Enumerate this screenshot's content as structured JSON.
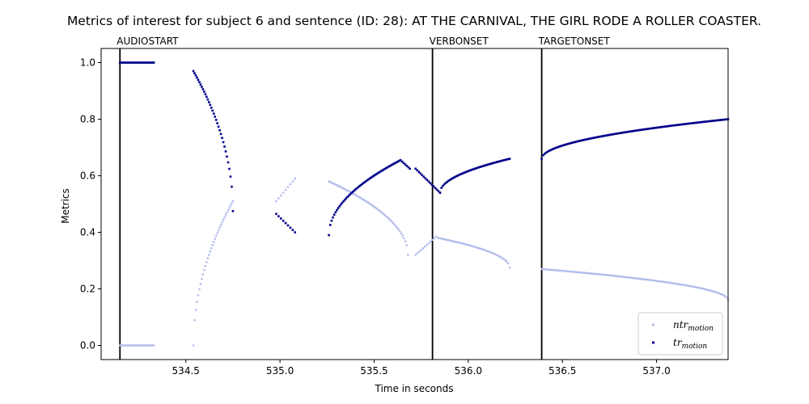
{
  "chart_data": {
    "type": "scatter",
    "title": "Metrics of interest for subject 6 and sentence (ID: 28): AT THE CARNIVAL, THE GIRL RODE A ROLLER COASTER.",
    "xlabel": "Time in seconds",
    "ylabel": "Metrics",
    "xlim": [
      534.05,
      537.38
    ],
    "ylim": [
      -0.05,
      1.05
    ],
    "x_ticks": [
      534.5,
      535.0,
      535.5,
      536.0,
      536.5,
      537.0
    ],
    "x_tick_labels": [
      "534.5",
      "535.0",
      "535.5",
      "536.0",
      "536.5",
      "537.0"
    ],
    "y_ticks": [
      0.0,
      0.2,
      0.4,
      0.6,
      0.8,
      1.0
    ],
    "y_tick_labels": [
      "0.0",
      "0.2",
      "0.4",
      "0.6",
      "0.8",
      "1.0"
    ],
    "events": [
      {
        "label": "AUDIOSTART",
        "x": 534.15
      },
      {
        "label": "VERBONSET",
        "x": 535.81
      },
      {
        "label": "TARGETONSET",
        "x": 536.39
      }
    ],
    "legend": {
      "position": "bottom-right",
      "entries": [
        {
          "base": "ntr",
          "sub": "motion",
          "series": 0
        },
        {
          "base": "tr",
          "sub": "motion",
          "series": 1
        }
      ]
    },
    "colors": {
      "ntr_motion": "#b3bdec",
      "tr_motion": "#00008b",
      "event_line": "#000000"
    },
    "series": [
      {
        "name": "ntr_motion",
        "segments": [
          {
            "x_start": 534.15,
            "x_end": 534.33,
            "n": 26,
            "y_start": 0.0,
            "y_end": 0.0,
            "curve": "linear"
          },
          {
            "x_start": 534.54,
            "x_end": 534.75,
            "n": 34,
            "y_start": 0.0,
            "y_end": 0.51,
            "curve": "concave"
          },
          {
            "x_start": 534.98,
            "x_end": 535.08,
            "n": 9,
            "y_start": 0.51,
            "y_end": 0.59,
            "curve": "linear"
          },
          {
            "x_start": 535.26,
            "x_end": 535.68,
            "n": 60,
            "y_start": 0.58,
            "y_end": 0.32,
            "curve": "convex"
          },
          {
            "x_start": 535.72,
            "x_end": 535.83,
            "n": 12,
            "y_start": 0.32,
            "y_end": 0.385,
            "curve": "linear"
          },
          {
            "x_start": 535.84,
            "x_end": 536.22,
            "n": 50,
            "y_start": 0.38,
            "y_end": 0.275,
            "curve": "convex"
          },
          {
            "x_start": 536.39,
            "x_end": 537.38,
            "n": 130,
            "y_start": 0.27,
            "y_end": 0.16,
            "curve": "convex"
          }
        ]
      },
      {
        "name": "tr_motion",
        "segments": [
          {
            "x_start": 534.15,
            "x_end": 534.33,
            "n": 26,
            "y_start": 1.0,
            "y_end": 1.0,
            "curve": "linear"
          },
          {
            "x_start": 534.54,
            "x_end": 534.75,
            "n": 34,
            "y_start": 0.97,
            "y_end": 0.475,
            "curve": "convex"
          },
          {
            "x_start": 534.98,
            "x_end": 535.08,
            "n": 9,
            "y_start": 0.465,
            "y_end": 0.4,
            "curve": "linear"
          },
          {
            "x_start": 535.26,
            "x_end": 535.64,
            "n": 55,
            "y_start": 0.39,
            "y_end": 0.655,
            "curve": "concave"
          },
          {
            "x_start": 535.64,
            "x_end": 535.69,
            "n": 7,
            "y_start": 0.655,
            "y_end": 0.625,
            "curve": "linear"
          },
          {
            "x_start": 535.72,
            "x_end": 535.85,
            "n": 16,
            "y_start": 0.625,
            "y_end": 0.54,
            "curve": "linear"
          },
          {
            "x_start": 535.85,
            "x_end": 536.22,
            "n": 50,
            "y_start": 0.54,
            "y_end": 0.66,
            "curve": "concave"
          },
          {
            "x_start": 536.39,
            "x_end": 537.38,
            "n": 130,
            "y_start": 0.66,
            "y_end": 0.8,
            "curve": "concave"
          }
        ]
      }
    ]
  }
}
